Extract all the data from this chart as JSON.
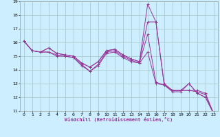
{
  "xlabel": "Windchill (Refroidissement éolien,°C)",
  "background_color": "#cceeff",
  "grid_color": "#aacccc",
  "line_color": "#993399",
  "xlim": [
    -0.5,
    23.5
  ],
  "ylim": [
    11,
    19
  ],
  "xticks": [
    0,
    1,
    2,
    3,
    4,
    5,
    6,
    7,
    8,
    9,
    10,
    11,
    12,
    13,
    14,
    15,
    16,
    17,
    18,
    19,
    20,
    21,
    22,
    23
  ],
  "yticks": [
    11,
    12,
    13,
    14,
    15,
    16,
    17,
    18,
    19
  ],
  "series": [
    [
      16.1,
      15.4,
      15.3,
      15.3,
      15.0,
      15.0,
      14.9,
      14.3,
      13.9,
      14.4,
      15.3,
      15.4,
      15.0,
      14.7,
      14.5,
      15.3,
      13.0,
      12.9,
      12.5,
      12.5,
      13.0,
      12.3,
      12.0,
      10.8
    ],
    [
      16.1,
      15.4,
      15.3,
      15.3,
      15.1,
      15.0,
      14.9,
      14.4,
      13.9,
      14.3,
      15.2,
      15.3,
      14.9,
      14.6,
      14.5,
      16.6,
      13.1,
      12.9,
      12.4,
      12.4,
      13.0,
      12.3,
      12.0,
      10.8
    ],
    [
      16.1,
      15.4,
      15.3,
      15.6,
      15.2,
      15.1,
      15.0,
      14.5,
      14.2,
      14.6,
      15.4,
      15.5,
      15.1,
      14.8,
      14.6,
      17.5,
      17.5,
      12.9,
      12.5,
      12.5,
      12.5,
      12.5,
      12.3,
      10.8
    ],
    [
      16.1,
      15.4,
      15.3,
      15.6,
      15.2,
      15.1,
      15.0,
      14.5,
      14.2,
      14.6,
      15.4,
      15.5,
      15.1,
      14.8,
      14.6,
      18.8,
      17.5,
      13.0,
      12.5,
      12.5,
      12.5,
      12.4,
      12.2,
      10.8
    ]
  ]
}
